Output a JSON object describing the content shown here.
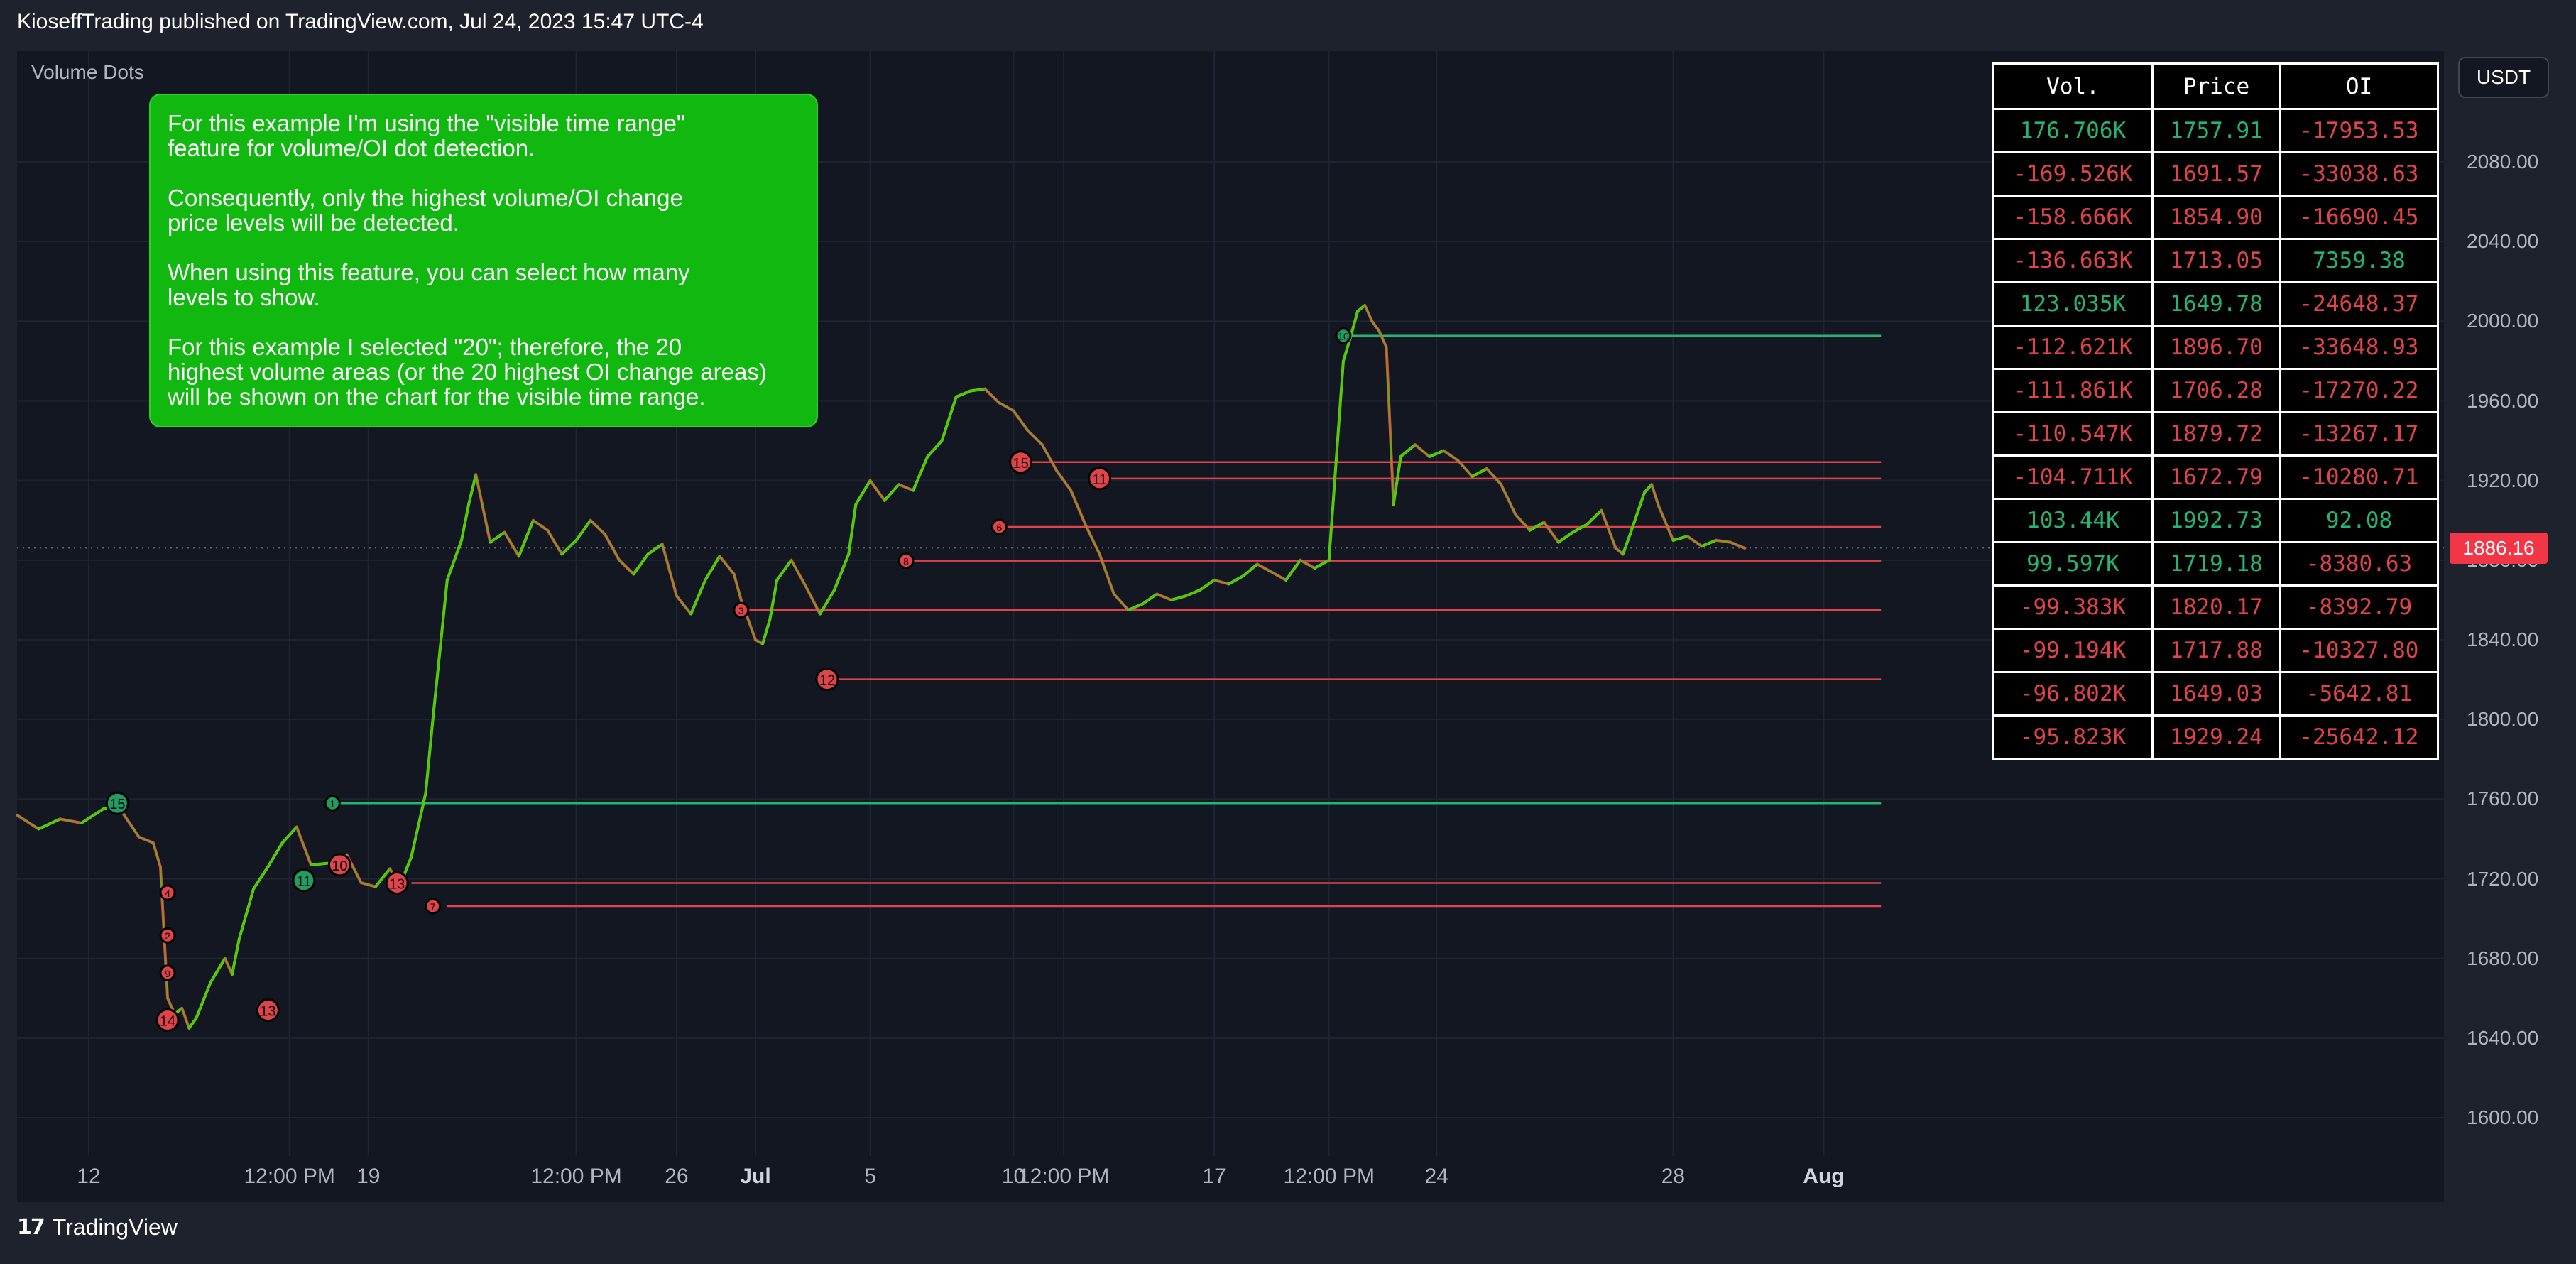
{
  "header": {
    "publisher": "KioseffTrading published on TradingView.com, Jul 24, 2023 15:47 UTC-4"
  },
  "footer": {
    "brand": "TradingView",
    "logo_text": "17"
  },
  "indicator": {
    "name": "Volume Dots"
  },
  "currency": "USDT",
  "note": {
    "paragraphs": [
      "For this example I'm using the \"visible time range\"\nfeature for volume/OI dot detection.",
      "Consequently, only the highest volume/OI change\n price levels will be detected.",
      "When using this feature, you can select how many\nlevels to show.",
      "For this example I selected \"20\"; therefore, the 20\nhighest volume areas (or the 20 highest OI change areas)\nwill be shown on the chart for the visible time range."
    ]
  },
  "table": {
    "headers": [
      "Vol.",
      "Price",
      "OI"
    ],
    "rows": [
      {
        "vol": "176.706K",
        "price": "1757.91",
        "oi": "-17953.53",
        "vol_color": "g",
        "price_color": "g",
        "oi_color": "r"
      },
      {
        "vol": "-169.526K",
        "price": "1691.57",
        "oi": "-33038.63",
        "vol_color": "r",
        "price_color": "r",
        "oi_color": "r"
      },
      {
        "vol": "-158.666K",
        "price": "1854.90",
        "oi": "-16690.45",
        "vol_color": "r",
        "price_color": "r",
        "oi_color": "r"
      },
      {
        "vol": "-136.663K",
        "price": "1713.05",
        "oi": "7359.38",
        "vol_color": "r",
        "price_color": "r",
        "oi_color": "g"
      },
      {
        "vol": "123.035K",
        "price": "1649.78",
        "oi": "-24648.37",
        "vol_color": "g",
        "price_color": "g",
        "oi_color": "r"
      },
      {
        "vol": "-112.621K",
        "price": "1896.70",
        "oi": "-33648.93",
        "vol_color": "r",
        "price_color": "r",
        "oi_color": "r"
      },
      {
        "vol": "-111.861K",
        "price": "1706.28",
        "oi": "-17270.22",
        "vol_color": "r",
        "price_color": "r",
        "oi_color": "r"
      },
      {
        "vol": "-110.547K",
        "price": "1879.72",
        "oi": "-13267.17",
        "vol_color": "r",
        "price_color": "r",
        "oi_color": "r"
      },
      {
        "vol": "-104.711K",
        "price": "1672.79",
        "oi": "-10280.71",
        "vol_color": "r",
        "price_color": "r",
        "oi_color": "r"
      },
      {
        "vol": "103.44K",
        "price": "1992.73",
        "oi": "92.08",
        "vol_color": "g",
        "price_color": "g",
        "oi_color": "g"
      },
      {
        "vol": "99.597K",
        "price": "1719.18",
        "oi": "-8380.63",
        "vol_color": "g",
        "price_color": "g",
        "oi_color": "r"
      },
      {
        "vol": "-99.383K",
        "price": "1820.17",
        "oi": "-8392.79",
        "vol_color": "r",
        "price_color": "r",
        "oi_color": "r"
      },
      {
        "vol": "-99.194K",
        "price": "1717.88",
        "oi": "-10327.80",
        "vol_color": "r",
        "price_color": "r",
        "oi_color": "r"
      },
      {
        "vol": "-96.802K",
        "price": "1649.03",
        "oi": "-5642.81",
        "vol_color": "r",
        "price_color": "r",
        "oi_color": "r"
      },
      {
        "vol": "-95.823K",
        "price": "1929.24",
        "oi": "-25642.12",
        "vol_color": "r",
        "price_color": "r",
        "oi_color": "r"
      }
    ]
  },
  "chart_data": {
    "type": "line",
    "symbol_currency": "USDT",
    "last_price": "1886.16",
    "y_ticks": [
      "2080.00",
      "2040.00",
      "2000.00",
      "1960.00",
      "1920.00",
      "1880.00",
      "1840.00",
      "1800.00",
      "1760.00",
      "1720.00",
      "1680.00",
      "1640.00",
      "1600.00"
    ],
    "ylim": [
      1586,
      2108
    ],
    "x_ticks": [
      {
        "label": "12",
        "bold": false
      },
      {
        "label": "12:00 PM",
        "bold": false
      },
      {
        "label": "19",
        "bold": false
      },
      {
        "label": "12:00 PM",
        "bold": false
      },
      {
        "label": "26",
        "bold": false
      },
      {
        "label": "Jul",
        "bold": true
      },
      {
        "label": "5",
        "bold": false
      },
      {
        "label": "10",
        "bold": false
      },
      {
        "label": "12:00 PM",
        "bold": false
      },
      {
        "label": "17",
        "bold": false
      },
      {
        "label": "12:00 PM",
        "bold": false
      },
      {
        "label": "24",
        "bold": false
      },
      {
        "label": "28",
        "bold": false
      },
      {
        "label": "Aug",
        "bold": true
      }
    ],
    "x_tick_index": [
      10,
      38,
      49,
      78,
      92,
      103,
      119,
      139,
      146,
      167,
      183,
      198,
      231,
      252
    ],
    "x_range": [
      0,
      268
    ],
    "price_series": [
      [
        0,
        1752
      ],
      [
        3,
        1745
      ],
      [
        6,
        1750
      ],
      [
        9,
        1748
      ],
      [
        12,
        1755
      ],
      [
        14,
        1757
      ],
      [
        17,
        1741
      ],
      [
        19,
        1738
      ],
      [
        20,
        1726
      ],
      [
        21,
        1660
      ],
      [
        22,
        1652
      ],
      [
        23,
        1655
      ],
      [
        24,
        1645
      ],
      [
        25,
        1650
      ],
      [
        27,
        1668
      ],
      [
        29,
        1680
      ],
      [
        30,
        1672
      ],
      [
        31,
        1690
      ],
      [
        33,
        1715
      ],
      [
        35,
        1726
      ],
      [
        37,
        1738
      ],
      [
        39,
        1746
      ],
      [
        41,
        1727
      ],
      [
        44,
        1728
      ],
      [
        46,
        1732
      ],
      [
        48,
        1718
      ],
      [
        50,
        1716
      ],
      [
        52,
        1725
      ],
      [
        53,
        1719
      ],
      [
        54,
        1722
      ],
      [
        55,
        1731
      ],
      [
        57,
        1763
      ],
      [
        58,
        1800
      ],
      [
        59,
        1835
      ],
      [
        60,
        1870
      ],
      [
        62,
        1890
      ],
      [
        63,
        1908
      ],
      [
        64,
        1923
      ],
      [
        66,
        1889
      ],
      [
        68,
        1894
      ],
      [
        70,
        1882
      ],
      [
        72,
        1900
      ],
      [
        74,
        1895
      ],
      [
        76,
        1883
      ],
      [
        78,
        1890
      ],
      [
        80,
        1900
      ],
      [
        82,
        1893
      ],
      [
        84,
        1880
      ],
      [
        86,
        1873
      ],
      [
        88,
        1883
      ],
      [
        90,
        1888
      ],
      [
        92,
        1862
      ],
      [
        94,
        1853
      ],
      [
        96,
        1870
      ],
      [
        98,
        1882
      ],
      [
        100,
        1873
      ],
      [
        101,
        1860
      ],
      [
        103,
        1840
      ],
      [
        104,
        1838
      ],
      [
        105,
        1850
      ],
      [
        106,
        1870
      ],
      [
        108,
        1880
      ],
      [
        110,
        1867
      ],
      [
        112,
        1853
      ],
      [
        114,
        1865
      ],
      [
        116,
        1883
      ],
      [
        117,
        1908
      ],
      [
        119,
        1920
      ],
      [
        121,
        1910
      ],
      [
        123,
        1918
      ],
      [
        125,
        1915
      ],
      [
        127,
        1932
      ],
      [
        129,
        1940
      ],
      [
        131,
        1962
      ],
      [
        133,
        1965
      ],
      [
        135,
        1966
      ],
      [
        137,
        1959
      ],
      [
        139,
        1955
      ],
      [
        141,
        1945
      ],
      [
        143,
        1938
      ],
      [
        145,
        1925
      ],
      [
        147,
        1915
      ],
      [
        149,
        1898
      ],
      [
        151,
        1883
      ],
      [
        153,
        1863
      ],
      [
        155,
        1855
      ],
      [
        157,
        1858
      ],
      [
        159,
        1863
      ],
      [
        161,
        1860
      ],
      [
        163,
        1862
      ],
      [
        165,
        1865
      ],
      [
        167,
        1870
      ],
      [
        169,
        1868
      ],
      [
        171,
        1872
      ],
      [
        173,
        1878
      ],
      [
        175,
        1874
      ],
      [
        177,
        1870
      ],
      [
        179,
        1880
      ],
      [
        181,
        1876
      ],
      [
        183,
        1880
      ],
      [
        184,
        1930
      ],
      [
        185,
        1980
      ],
      [
        186,
        1992
      ],
      [
        187,
        2005
      ],
      [
        188,
        2008
      ],
      [
        189,
        2000
      ],
      [
        190,
        1995
      ],
      [
        191,
        1987
      ],
      [
        192,
        1908
      ],
      [
        193,
        1932
      ],
      [
        195,
        1938
      ],
      [
        197,
        1932
      ],
      [
        199,
        1935
      ],
      [
        201,
        1930
      ],
      [
        203,
        1922
      ],
      [
        205,
        1926
      ],
      [
        207,
        1918
      ],
      [
        209,
        1903
      ],
      [
        211,
        1895
      ],
      [
        213,
        1899
      ],
      [
        215,
        1889
      ],
      [
        217,
        1894
      ],
      [
        219,
        1898
      ],
      [
        221,
        1905
      ],
      [
        223,
        1886
      ],
      [
        224,
        1883
      ],
      [
        225,
        1893
      ],
      [
        227,
        1914
      ],
      [
        228,
        1918
      ],
      [
        229,
        1907
      ],
      [
        231,
        1890
      ],
      [
        233,
        1892
      ],
      [
        235,
        1887
      ],
      [
        237,
        1890
      ],
      [
        239,
        1889
      ],
      [
        241,
        1886
      ]
    ],
    "levels": [
      {
        "price": 1992.73,
        "x_start": 185,
        "x_end": 260,
        "color": "green"
      },
      {
        "price": 1929.24,
        "x_start": 140,
        "x_end": 260,
        "color": "red"
      },
      {
        "price": 1921.0,
        "x_start": 152,
        "x_end": 260,
        "color": "red"
      },
      {
        "price": 1896.7,
        "x_start": 138,
        "x_end": 260,
        "color": "red"
      },
      {
        "price": 1879.72,
        "x_start": 125,
        "x_end": 260,
        "color": "red"
      },
      {
        "price": 1854.9,
        "x_start": 100,
        "x_end": 260,
        "color": "red"
      },
      {
        "price": 1820.17,
        "x_start": 114,
        "x_end": 260,
        "color": "red"
      },
      {
        "price": 1757.91,
        "x_start": 44,
        "x_end": 260,
        "color": "green"
      },
      {
        "price": 1717.88,
        "x_start": 55,
        "x_end": 260,
        "color": "red"
      },
      {
        "price": 1706.28,
        "x_start": 60,
        "x_end": 260,
        "color": "red"
      }
    ],
    "dots": [
      {
        "x": 21,
        "price": 1713.05,
        "color": "red",
        "size": "s",
        "label": "4"
      },
      {
        "x": 21,
        "price": 1691.57,
        "color": "red",
        "size": "s",
        "label": "2"
      },
      {
        "x": 21,
        "price": 1672.79,
        "color": "red",
        "size": "s",
        "label": "9"
      },
      {
        "x": 21,
        "price": 1649.03,
        "color": "red",
        "size": "l",
        "label": "14"
      },
      {
        "x": 35,
        "price": 1654.0,
        "color": "red",
        "size": "l",
        "label": "13"
      },
      {
        "x": 14,
        "price": 1757.91,
        "color": "green",
        "size": "l",
        "label": "15"
      },
      {
        "x": 44,
        "price": 1757.91,
        "color": "green",
        "size": "s",
        "label": "1"
      },
      {
        "x": 40,
        "price": 1719.18,
        "color": "green",
        "size": "l",
        "label": "11"
      },
      {
        "x": 45,
        "price": 1727.0,
        "color": "red",
        "size": "l",
        "label": "10"
      },
      {
        "x": 53,
        "price": 1717.88,
        "color": "red",
        "size": "l",
        "label": "13"
      },
      {
        "x": 58,
        "price": 1706.28,
        "color": "red",
        "size": "s",
        "label": "7"
      },
      {
        "x": 101,
        "price": 1854.9,
        "color": "red",
        "size": "s",
        "label": "3"
      },
      {
        "x": 113,
        "price": 1820.17,
        "color": "red",
        "size": "l",
        "label": "12"
      },
      {
        "x": 124,
        "price": 1879.72,
        "color": "red",
        "size": "s",
        "label": "8"
      },
      {
        "x": 137,
        "price": 1896.7,
        "color": "red",
        "size": "s",
        "label": "6"
      },
      {
        "x": 140,
        "price": 1929.24,
        "color": "red",
        "size": "l",
        "label": "15"
      },
      {
        "x": 151,
        "price": 1921.0,
        "color": "red",
        "size": "l",
        "label": "11"
      },
      {
        "x": 185,
        "price": 1992.73,
        "color": "green",
        "size": "s",
        "label": "10"
      }
    ]
  }
}
